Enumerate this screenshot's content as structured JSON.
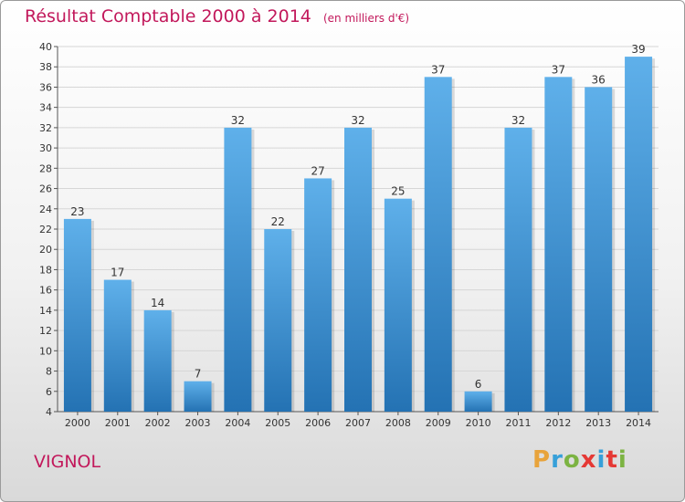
{
  "title": "Résultat Comptable 2000 à 2014",
  "subtitle": "(en milliers d'€)",
  "commune": "VIGNOL",
  "brand": {
    "text": "Proxiti",
    "colors": [
      "#e8a33b",
      "#37a0d9",
      "#7cb342",
      "#e53935",
      "#37a0d9",
      "#e53935",
      "#7cb342"
    ]
  },
  "colors": {
    "title": "#c2185b",
    "bar_light": "#5fb0ea",
    "bar_dark": "#2472b3"
  },
  "chart_data": {
    "type": "bar",
    "title": "Résultat Comptable 2000 à 2014",
    "categories": [
      "2000",
      "2001",
      "2002",
      "2003",
      "2004",
      "2005",
      "2006",
      "2007",
      "2008",
      "2009",
      "2010",
      "2011",
      "2012",
      "2013",
      "2014"
    ],
    "values": [
      23,
      17,
      14,
      7,
      32,
      22,
      27,
      32,
      25,
      37,
      6,
      32,
      37,
      36,
      39
    ],
    "ylim": [
      4,
      40
    ],
    "yticks": [
      4,
      6,
      8,
      10,
      12,
      14,
      16,
      18,
      20,
      22,
      24,
      26,
      28,
      30,
      32,
      34,
      36,
      38,
      40
    ],
    "grid": true
  }
}
